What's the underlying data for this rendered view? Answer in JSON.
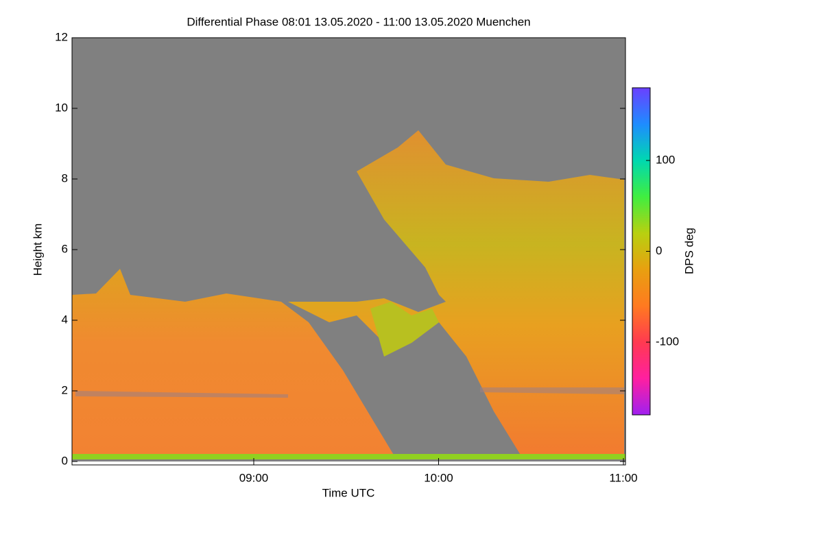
{
  "chart_data": {
    "type": "heatmap",
    "title": "Differential Phase   08:01 13.05.2020 - 11:00 13.05.2020 Muenchen",
    "xlabel": "Time UTC",
    "ylabel": "Height km",
    "xlim": [
      8.0167,
      11
    ],
    "xticks": [
      {
        "value": 9,
        "label": "09:00"
      },
      {
        "value": 10,
        "label": "10:00"
      },
      {
        "value": 11,
        "label": "11:00"
      }
    ],
    "ylim": [
      0,
      12
    ],
    "yticks": [
      0,
      2,
      4,
      6,
      8,
      10,
      12
    ],
    "colorbar_label": "DPS deg",
    "zlim": [
      -180,
      180
    ],
    "zticks": [
      -100,
      0,
      100
    ],
    "colormap": [
      "#a020f0",
      "#ff1fa0",
      "#ff3a50",
      "#ff7a20",
      "#e8a010",
      "#b8d010",
      "#40ee40",
      "#00d8b0",
      "#1e8cff",
      "#6a40ff"
    ]
  }
}
